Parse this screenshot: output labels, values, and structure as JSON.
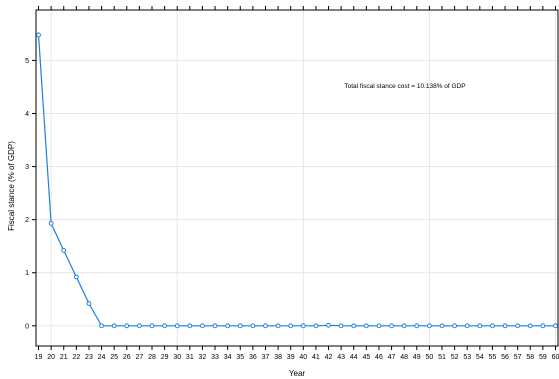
{
  "chart_data": {
    "type": "line",
    "x": [
      19,
      20,
      21,
      22,
      23,
      24,
      25,
      26,
      27,
      28,
      29,
      30,
      31,
      32,
      33,
      34,
      35,
      36,
      37,
      38,
      39,
      40,
      41,
      42,
      43,
      44,
      45,
      46,
      47,
      48,
      49,
      50,
      51,
      52,
      53,
      54,
      55,
      56,
      57,
      58,
      59,
      60
    ],
    "series": [
      {
        "values": [
          5.48,
          1.93,
          1.42,
          0.92,
          0.42,
          0.0,
          0.0,
          0.0,
          0.0,
          0.0,
          0.0,
          0.0,
          0.0,
          0.0,
          0.0,
          0.0,
          0.0,
          0.0,
          0.0,
          0.0,
          0.0,
          0.0,
          0.0,
          0.01,
          0.0,
          0.0,
          0.0,
          0.0,
          0.0,
          0.0,
          0.0,
          0.0,
          0.0,
          0.0,
          0.0,
          0.0,
          0.0,
          0.0,
          0.0,
          0.0,
          0.0,
          0.0
        ],
        "color": "#1f7fe0"
      }
    ],
    "xlabel": "Year",
    "ylabel": "Fiscal stance (% of GDP)",
    "xlim": [
      18.8,
      60.2
    ],
    "ylim": [
      -0.38,
      5.95
    ],
    "yticks": [
      0,
      1,
      2,
      3,
      4,
      5
    ],
    "grid_color": "#e6e6e6",
    "grid": true,
    "annotation": "Total fiscal stance cost = 10.138% of GDP"
  }
}
